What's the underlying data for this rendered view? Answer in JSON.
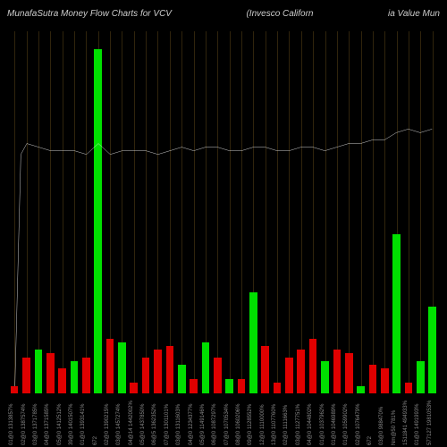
{
  "title": {
    "left": "MunafaSutra  Money Flow  Charts for VCV",
    "mid": "(Invesco  Californ",
    "right": "ia Value  Mun"
  },
  "chart": {
    "type": "bar-with-line",
    "background_color": "#000000",
    "grid_color": "#443311",
    "bar_green": "#00e000",
    "bar_red": "#e00000",
    "line_color": "#ffffff",
    "y_max": 100,
    "bar_width_ratio": 0.7,
    "bars": [
      {
        "value": 2,
        "color": "red"
      },
      {
        "value": 10,
        "color": "red"
      },
      {
        "value": 12,
        "color": "green"
      },
      {
        "value": 11,
        "color": "red"
      },
      {
        "value": 7,
        "color": "red"
      },
      {
        "value": 9,
        "color": "green"
      },
      {
        "value": 10,
        "color": "red"
      },
      {
        "value": 95,
        "color": "green"
      },
      {
        "value": 15,
        "color": "red"
      },
      {
        "value": 14,
        "color": "green"
      },
      {
        "value": 3,
        "color": "red"
      },
      {
        "value": 10,
        "color": "red"
      },
      {
        "value": 12,
        "color": "red"
      },
      {
        "value": 13,
        "color": "red"
      },
      {
        "value": 8,
        "color": "green"
      },
      {
        "value": 4,
        "color": "red"
      },
      {
        "value": 14,
        "color": "green"
      },
      {
        "value": 10,
        "color": "red"
      },
      {
        "value": 4,
        "color": "green"
      },
      {
        "value": 4,
        "color": "red"
      },
      {
        "value": 28,
        "color": "green"
      },
      {
        "value": 13,
        "color": "red"
      },
      {
        "value": 3,
        "color": "red"
      },
      {
        "value": 10,
        "color": "red"
      },
      {
        "value": 12,
        "color": "red"
      },
      {
        "value": 15,
        "color": "red"
      },
      {
        "value": 9,
        "color": "green"
      },
      {
        "value": 12,
        "color": "red"
      },
      {
        "value": 11,
        "color": "red"
      },
      {
        "value": 2,
        "color": "green"
      },
      {
        "value": 8,
        "color": "red"
      },
      {
        "value": 7,
        "color": "red"
      },
      {
        "value": 44,
        "color": "green"
      },
      {
        "value": 3,
        "color": "red"
      },
      {
        "value": 9,
        "color": "green"
      },
      {
        "value": 24,
        "color": "green"
      }
    ],
    "line_points": [
      {
        "x": 0,
        "y": 2
      },
      {
        "x": 0.5,
        "y": 66
      },
      {
        "x": 1,
        "y": 69
      },
      {
        "x": 2,
        "y": 68
      },
      {
        "x": 3,
        "y": 67
      },
      {
        "x": 4,
        "y": 67
      },
      {
        "x": 5,
        "y": 67
      },
      {
        "x": 6,
        "y": 66
      },
      {
        "x": 7,
        "y": 69
      },
      {
        "x": 8,
        "y": 66
      },
      {
        "x": 9,
        "y": 67
      },
      {
        "x": 10,
        "y": 67
      },
      {
        "x": 11,
        "y": 67
      },
      {
        "x": 12,
        "y": 66
      },
      {
        "x": 13,
        "y": 67
      },
      {
        "x": 14,
        "y": 68
      },
      {
        "x": 15,
        "y": 67
      },
      {
        "x": 16,
        "y": 68
      },
      {
        "x": 17,
        "y": 68
      },
      {
        "x": 18,
        "y": 67
      },
      {
        "x": 19,
        "y": 67
      },
      {
        "x": 20,
        "y": 68
      },
      {
        "x": 21,
        "y": 68
      },
      {
        "x": 22,
        "y": 67
      },
      {
        "x": 23,
        "y": 67
      },
      {
        "x": 24,
        "y": 68
      },
      {
        "x": 25,
        "y": 68
      },
      {
        "x": 26,
        "y": 67
      },
      {
        "x": 27,
        "y": 68
      },
      {
        "x": 28,
        "y": 69
      },
      {
        "x": 29,
        "y": 69
      },
      {
        "x": 30,
        "y": 70
      },
      {
        "x": 31,
        "y": 70
      },
      {
        "x": 32,
        "y": 72
      },
      {
        "x": 33,
        "y": 73
      },
      {
        "x": 34,
        "y": 72
      },
      {
        "x": 35,
        "y": 73
      }
    ],
    "x_labels": [
      "01@0 1313857%",
      "02@0 1387574%",
      "03@0 1371785%",
      "04@0 1371585%",
      "05@0 1412512%",
      "39@0 1401507%",
      "01@0 1393141%",
      "672",
      "02@0 1390215%",
      "03@0 1457274%",
      "04@14 1442002%",
      "05@0 1437850%",
      "06@5 1362352%",
      "07@0 1301101%",
      "03@0 1311603%",
      "04@0 1234377%",
      "05@9 1149146%",
      "06@0 1087297%",
      "07@0 1070534%",
      "08@0 1060206%",
      "09@0 1128552%",
      "12@0 1110000%",
      "13@0 1107760%",
      "02@0 1111663%",
      "03@0 1127751%",
      "04@0 1044802%",
      "01@0 1037962%",
      "01@0 1046989%",
      "01@0 1059902%",
      "02@0 1076479%",
      "672",
      "03@0 988470%",
      "Nm@50 781%",
      "1511841 494933%",
      "01@0 1491993%",
      "577127 1981053%"
    ]
  }
}
